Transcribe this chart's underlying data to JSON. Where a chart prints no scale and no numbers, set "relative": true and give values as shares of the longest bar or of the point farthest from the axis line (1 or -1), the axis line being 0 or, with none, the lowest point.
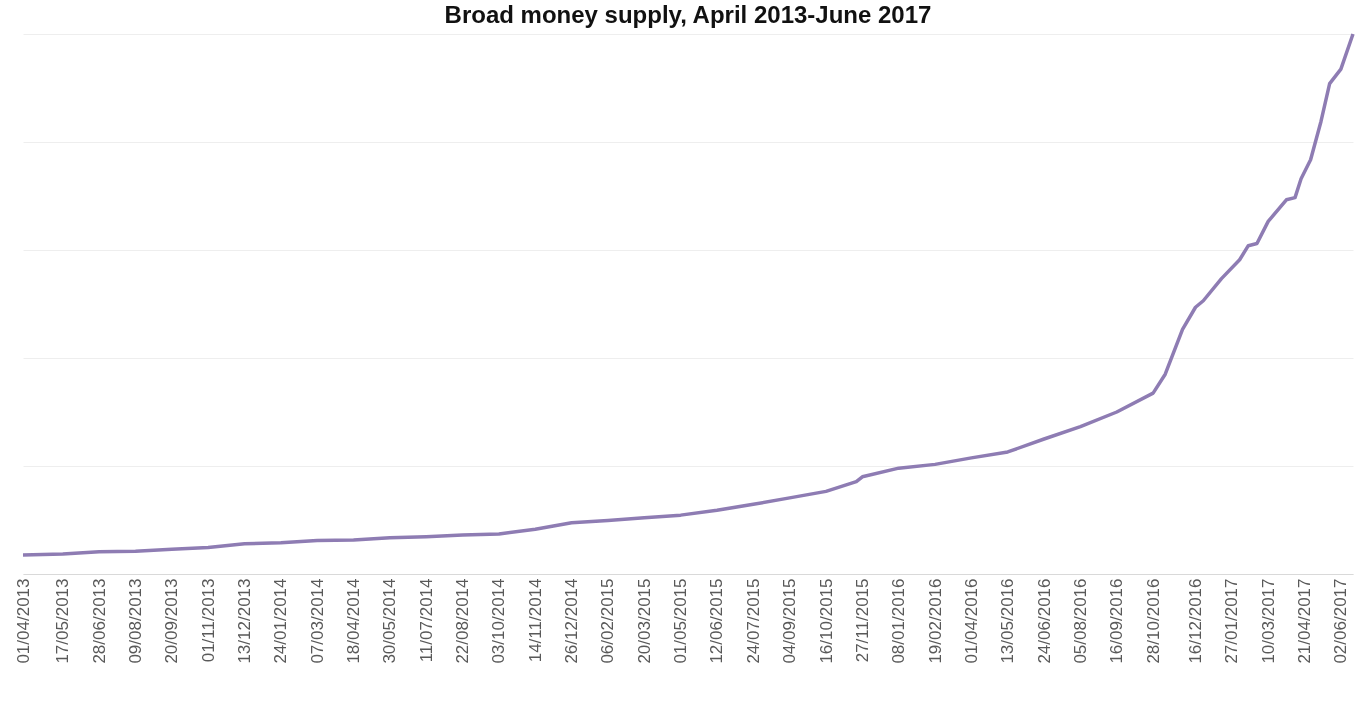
{
  "chart_data": {
    "type": "line",
    "title": "Broad money supply, April 2013-June 2017",
    "relative": true,
    "grid": "y",
    "marker": "none",
    "line_style": "solid",
    "x": [
      "2013-04-01",
      "2013-05-17",
      "2013-06-28",
      "2013-08-09",
      "2013-09-20",
      "2013-11-01",
      "2013-12-13",
      "2014-01-24",
      "2014-03-07",
      "2014-04-18",
      "2014-05-30",
      "2014-07-11",
      "2014-08-22",
      "2014-10-03",
      "2014-11-14",
      "2014-12-26",
      "2015-02-06",
      "2015-03-20",
      "2015-05-01",
      "2015-06-12",
      "2015-07-24",
      "2015-09-04",
      "2015-10-16",
      "2015-11-20",
      "2015-11-27",
      "2016-01-08",
      "2016-02-19",
      "2016-04-01",
      "2016-05-13",
      "2016-06-24",
      "2016-08-05",
      "2016-09-16",
      "2016-10-28",
      "2016-11-11",
      "2016-12-01",
      "2016-12-16",
      "2016-12-25",
      "2017-01-15",
      "2017-02-05",
      "2017-02-15",
      "2017-02-25",
      "2017-03-10",
      "2017-03-31",
      "2017-04-10",
      "2017-04-17",
      "2017-04-28",
      "2017-05-10",
      "2017-05-20",
      "2017-06-02",
      "2017-06-16"
    ],
    "series": [
      {
        "color": "#8e7cb3",
        "values": [
          0.035,
          0.037,
          0.041,
          0.042,
          0.046,
          0.049,
          0.056,
          0.058,
          0.062,
          0.063,
          0.067,
          0.069,
          0.072,
          0.074,
          0.083,
          0.095,
          0.099,
          0.104,
          0.109,
          0.118,
          0.129,
          0.141,
          0.153,
          0.171,
          0.18,
          0.196,
          0.203,
          0.215,
          0.226,
          0.25,
          0.273,
          0.3,
          0.335,
          0.37,
          0.453,
          0.494,
          0.506,
          0.547,
          0.582,
          0.608,
          0.612,
          0.653,
          0.693,
          0.697,
          0.732,
          0.767,
          0.838,
          0.908,
          0.935,
          1
        ]
      }
    ],
    "xlim": [
      "2013-04-01",
      "2017-06-16"
    ],
    "xticks": [
      {
        "value": "2013-04-01",
        "label": "01/04/2013"
      },
      {
        "value": "2013-05-17",
        "label": "17/05/2013"
      },
      {
        "value": "2013-06-28",
        "label": "28/06/2013"
      },
      {
        "value": "2013-08-09",
        "label": "09/08/2013"
      },
      {
        "value": "2013-09-20",
        "label": "20/09/2013"
      },
      {
        "value": "2013-11-01",
        "label": "01/11/2013"
      },
      {
        "value": "2013-12-13",
        "label": "13/12/2013"
      },
      {
        "value": "2014-01-24",
        "label": "24/01/2014"
      },
      {
        "value": "2014-03-07",
        "label": "07/03/2014"
      },
      {
        "value": "2014-04-18",
        "label": "18/04/2014"
      },
      {
        "value": "2014-05-30",
        "label": "30/05/2014"
      },
      {
        "value": "2014-07-11",
        "label": "11/07/2014"
      },
      {
        "value": "2014-08-22",
        "label": "22/08/2014"
      },
      {
        "value": "2014-10-03",
        "label": "03/10/2014"
      },
      {
        "value": "2014-11-14",
        "label": "14/11/2014"
      },
      {
        "value": "2014-12-26",
        "label": "26/12/2014"
      },
      {
        "value": "2015-02-06",
        "label": "06/02/2015"
      },
      {
        "value": "2015-03-20",
        "label": "20/03/2015"
      },
      {
        "value": "2015-05-01",
        "label": "01/05/2015"
      },
      {
        "value": "2015-06-12",
        "label": "12/06/2015"
      },
      {
        "value": "2015-07-24",
        "label": "24/07/2015"
      },
      {
        "value": "2015-09-04",
        "label": "04/09/2015"
      },
      {
        "value": "2015-10-16",
        "label": "16/10/2015"
      },
      {
        "value": "2015-11-27",
        "label": "27/11/2015"
      },
      {
        "value": "2016-01-08",
        "label": "08/01/2016"
      },
      {
        "value": "2016-02-19",
        "label": "19/02/2016"
      },
      {
        "value": "2016-04-01",
        "label": "01/04/2016"
      },
      {
        "value": "2016-05-13",
        "label": "13/05/2016"
      },
      {
        "value": "2016-06-24",
        "label": "24/06/2016"
      },
      {
        "value": "2016-08-05",
        "label": "05/08/2016"
      },
      {
        "value": "2016-09-16",
        "label": "16/09/2016"
      },
      {
        "value": "2016-10-28",
        "label": "28/10/2016"
      },
      {
        "value": "2016-12-16",
        "label": "16/12/2016"
      },
      {
        "value": "2017-01-27",
        "label": "27/01/2017"
      },
      {
        "value": "2017-03-10",
        "label": "10/03/2017"
      },
      {
        "value": "2017-04-21",
        "label": "21/04/2017"
      },
      {
        "value": "2017-06-02",
        "label": "02/06/2017"
      }
    ]
  }
}
